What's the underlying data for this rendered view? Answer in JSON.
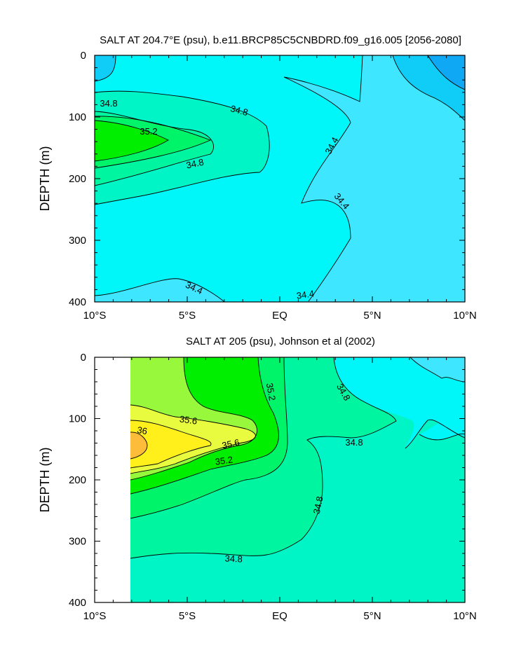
{
  "colors": {
    "c34_0": "#0fa8f5",
    "c34_2": "#10cdf8",
    "c34_4": "#3ee6ff",
    "c34_4b": "#00f7fa",
    "c34_8": "#00f5c6",
    "c35_0": "#00f5a0",
    "c35_2": "#00f46a",
    "c35_4": "#00ee00",
    "c35_6": "#98f83c",
    "c35_8": "#e8fb3e",
    "c36_0": "#fff01c",
    "c36_2": "#fdbc3a",
    "missing": "#ffffff",
    "frame": "#000000"
  },
  "chart_data": [
    {
      "type": "contour",
      "title": "SALT AT 204.7°E (psu), b.e11.BRCP85C5CNBDRD.f09_g16.005 [2056-2080]",
      "xlabel": "",
      "ylabel": "DEPTH (m)",
      "xlim": [
        -10,
        10
      ],
      "ylim": [
        400,
        0
      ],
      "x_ticks": [
        "10°S",
        "5°S",
        "EQ",
        "5°N",
        "10°N"
      ],
      "y_ticks": [
        "0",
        "100",
        "200",
        "300",
        "400"
      ],
      "contour_interval": 0.2,
      "contour_labels": [
        "34.8",
        "34.8",
        "35.2",
        "34.8",
        "34.4",
        "34.4",
        "34.4",
        "34.4"
      ]
    },
    {
      "type": "contour",
      "title": "SALT AT 205 (psu), Johnson et al (2002)",
      "xlabel": "",
      "ylabel": "DEPTH (m)",
      "xlim": [
        -10,
        10
      ],
      "ylim": [
        400,
        0
      ],
      "x_ticks": [
        "10°S",
        "5°S",
        "EQ",
        "5°N",
        "10°N"
      ],
      "y_ticks": [
        "0",
        "100",
        "200",
        "300",
        "400"
      ],
      "data_x_start": -8,
      "contour_interval": 0.2,
      "contour_labels": [
        "35.2",
        "34.8",
        "35.6",
        "36",
        "35.6",
        "35.2",
        "34.8",
        "34.8",
        "34.8"
      ]
    }
  ]
}
